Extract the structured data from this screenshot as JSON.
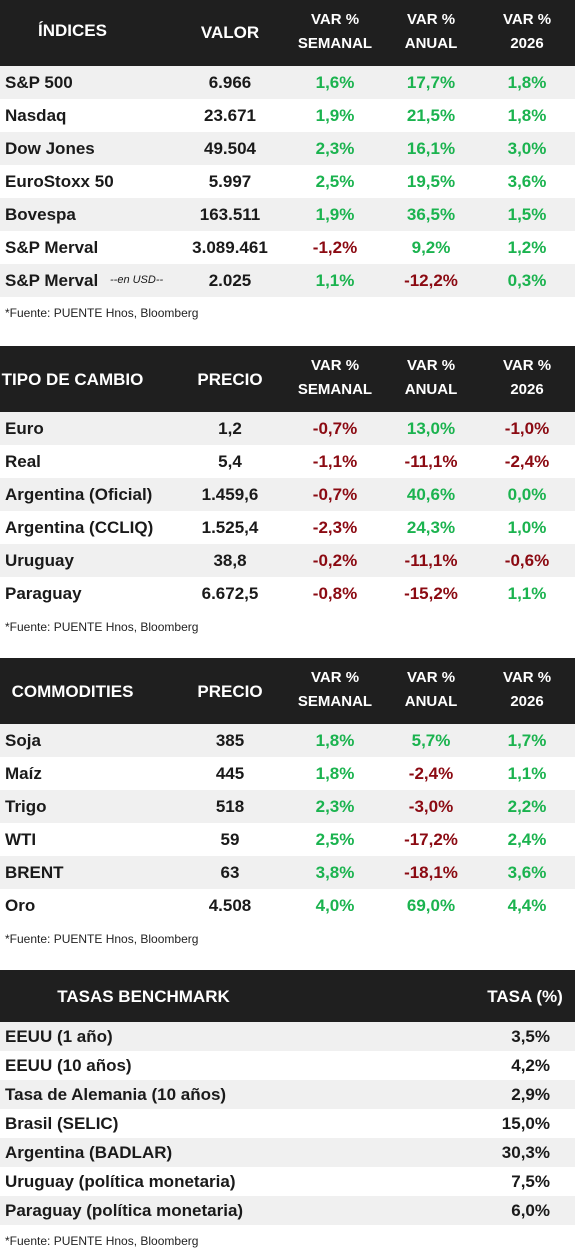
{
  "colors": {
    "positive": "#1bb34f",
    "negative": "#8b0a12",
    "header_bg": "#1f1f1f",
    "alt_row": "#f0f0f0"
  },
  "indices": {
    "headers": {
      "name": "ÍNDICES",
      "value": "VALOR",
      "weekly_1": "VAR %",
      "weekly_2": "SEMANAL",
      "annual_1": "VAR %",
      "annual_2": "ANUAL",
      "ytd_1": "VAR %",
      "ytd_2": "2026"
    },
    "rows": [
      {
        "name": "S&P 500",
        "value": "6.966",
        "weekly": "1,6%",
        "annual": "17,7%",
        "ytd": "1,8%"
      },
      {
        "name": "Nasdaq",
        "value": "23.671",
        "weekly": "1,9%",
        "annual": "21,5%",
        "ytd": "1,8%"
      },
      {
        "name": "Dow Jones",
        "value": "49.504",
        "weekly": "2,3%",
        "annual": "16,1%",
        "ytd": "3,0%"
      },
      {
        "name": "EuroStoxx 50",
        "value": "5.997",
        "weekly": "2,5%",
        "annual": "19,5%",
        "ytd": "3,6%"
      },
      {
        "name": "Bovespa",
        "value": "163.511",
        "weekly": "1,9%",
        "annual": "36,5%",
        "ytd": "1,5%"
      },
      {
        "name": "S&P Merval",
        "value": "3.089.461",
        "weekly": "-1,2%",
        "annual": "9,2%",
        "ytd": "1,2%"
      },
      {
        "name": "S&P Merval",
        "note": "--en USD--",
        "value": "2.025",
        "weekly": "1,1%",
        "annual": "-12,2%",
        "ytd": "0,3%"
      }
    ],
    "source": "*Fuente: PUENTE Hnos, Bloomberg"
  },
  "fx": {
    "headers": {
      "name": "TIPO DE CAMBIO",
      "value": "PRECIO",
      "weekly_1": "VAR %",
      "weekly_2": "SEMANAL",
      "annual_1": "VAR %",
      "annual_2": "ANUAL",
      "ytd_1": "VAR %",
      "ytd_2": "2026"
    },
    "rows": [
      {
        "name": "Euro",
        "value": "1,2",
        "weekly": "-0,7%",
        "annual": "13,0%",
        "ytd": "-1,0%"
      },
      {
        "name": "Real",
        "value": "5,4",
        "weekly": "-1,1%",
        "annual": "-11,1%",
        "ytd": "-2,4%"
      },
      {
        "name": "Argentina (Oficial)",
        "value": "1.459,6",
        "weekly": "-0,7%",
        "annual": "40,6%",
        "ytd": "0,0%"
      },
      {
        "name": "Argentina (CCLIQ)",
        "value": "1.525,4",
        "weekly": "-2,3%",
        "annual": "24,3%",
        "ytd": "1,0%"
      },
      {
        "name": "Uruguay",
        "value": "38,8",
        "weekly": "-0,2%",
        "annual": "-11,1%",
        "ytd": "-0,6%"
      },
      {
        "name": "Paraguay",
        "value": "6.672,5",
        "weekly": "-0,8%",
        "annual": "-15,2%",
        "ytd": "1,1%"
      }
    ],
    "source": "*Fuente: PUENTE Hnos, Bloomberg"
  },
  "commodities": {
    "headers": {
      "name": "COMMODITIES",
      "value": "PRECIO",
      "weekly_1": "VAR %",
      "weekly_2": "SEMANAL",
      "annual_1": "VAR %",
      "annual_2": "ANUAL",
      "ytd_1": "VAR %",
      "ytd_2": "2026"
    },
    "rows": [
      {
        "name": "Soja",
        "value": "385",
        "weekly": "1,8%",
        "annual": "5,7%",
        "ytd": "1,7%"
      },
      {
        "name": "Maíz",
        "value": "445",
        "weekly": "1,8%",
        "annual": "-2,4%",
        "ytd": "1,1%"
      },
      {
        "name": "Trigo",
        "value": "518",
        "weekly": "2,3%",
        "annual": "-3,0%",
        "ytd": "2,2%"
      },
      {
        "name": "WTI",
        "value": "59",
        "weekly": "2,5%",
        "annual": "-17,2%",
        "ytd": "2,4%"
      },
      {
        "name": "BRENT",
        "value": "63",
        "weekly": "3,8%",
        "annual": "-18,1%",
        "ytd": "3,6%"
      },
      {
        "name": "Oro",
        "value": "4.508",
        "weekly": "4,0%",
        "annual": "69,0%",
        "ytd": "4,4%"
      }
    ],
    "source": "*Fuente: PUENTE Hnos, Bloomberg"
  },
  "rates": {
    "headers": {
      "name": "TASAS BENCHMARK",
      "rate": "TASA (%)"
    },
    "rows": [
      {
        "name": "EEUU (1 año)",
        "rate": "3,5%"
      },
      {
        "name": "EEUU (10 años)",
        "rate": "4,2%"
      },
      {
        "name": "Tasa de Alemania (10 años)",
        "rate": "2,9%"
      },
      {
        "name": "Brasil (SELIC)",
        "rate": "15,0%"
      },
      {
        "name": "Argentina (BADLAR)",
        "rate": "30,3%"
      },
      {
        "name": "Uruguay (política monetaria)",
        "rate": "7,5%"
      },
      {
        "name": "Paraguay (política monetaria)",
        "rate": "6,0%"
      }
    ],
    "source": "*Fuente: PUENTE Hnos, Bloomberg"
  }
}
